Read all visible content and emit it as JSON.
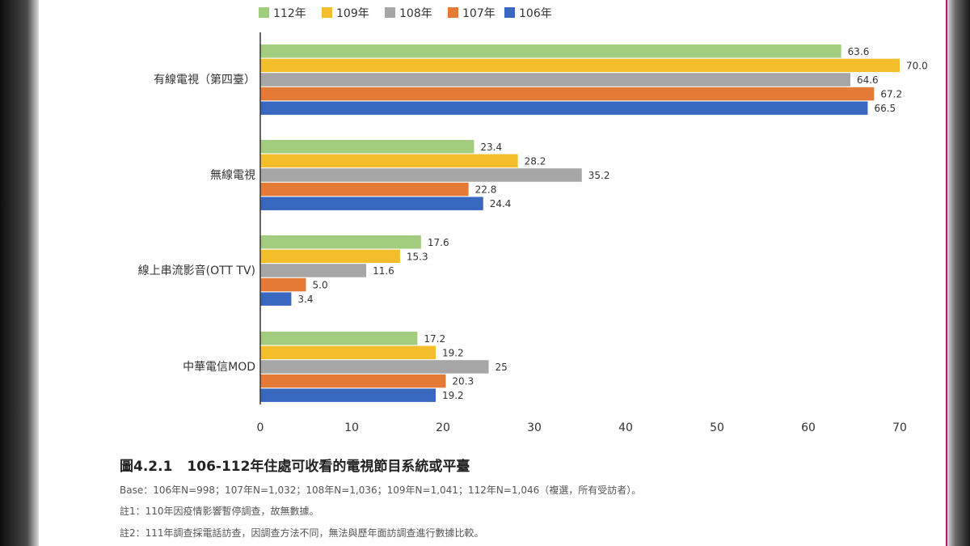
{
  "chart_data": {
    "type": "bar",
    "orientation": "horizontal",
    "categories": [
      "有線電視（第四臺）",
      "無線電視",
      "線上串流影音(OTT TV)",
      "中華電信MOD"
    ],
    "series": [
      {
        "name": "112年",
        "color": "#a2cc7e",
        "values": [
          63.6,
          23.4,
          17.6,
          17.2
        ],
        "labels": [
          "63.6",
          "23.4",
          "17.6",
          "17.2"
        ]
      },
      {
        "name": "109年",
        "color": "#f4be2a",
        "values": [
          70.0,
          28.2,
          15.3,
          19.2
        ],
        "labels": [
          "70.0",
          "28.2",
          "15.3",
          "19.2"
        ]
      },
      {
        "name": "108年",
        "color": "#a6a6a6",
        "values": [
          64.6,
          35.2,
          11.6,
          25
        ],
        "labels": [
          "64.6",
          "35.2",
          "11.6",
          "25"
        ]
      },
      {
        "name": "107年",
        "color": "#e47a35",
        "values": [
          67.2,
          22.8,
          5.0,
          20.3
        ],
        "labels": [
          "67.2",
          "22.8",
          "5.0",
          "20.3"
        ]
      },
      {
        "name": "106年",
        "color": "#3867bf",
        "values": [
          66.5,
          24.4,
          3.4,
          19.2
        ],
        "labels": [
          "66.5",
          "24.4",
          "3.4",
          "19.2"
        ]
      }
    ],
    "xlim": [
      0,
      70
    ],
    "xticks": [
      0,
      10,
      20,
      30,
      40,
      50,
      60,
      70
    ],
    "grid": false,
    "legend_position": "top"
  },
  "caption": {
    "figure_id": "圖4.2.1",
    "title": "106-112年住處可收看的電視節目系統或平臺"
  },
  "notes": {
    "base": "Base：106年N=998；107年N=1,032；108年N=1,036；109年N=1,041；112年N=1,046（複選，所有受訪者）。",
    "note1": "註1：110年因疫情影響暫停調查，故無數據。",
    "note2": "註2：111年調查採電話訪查，因調查方法不同，無法與歷年面訪調查進行數據比較。"
  }
}
